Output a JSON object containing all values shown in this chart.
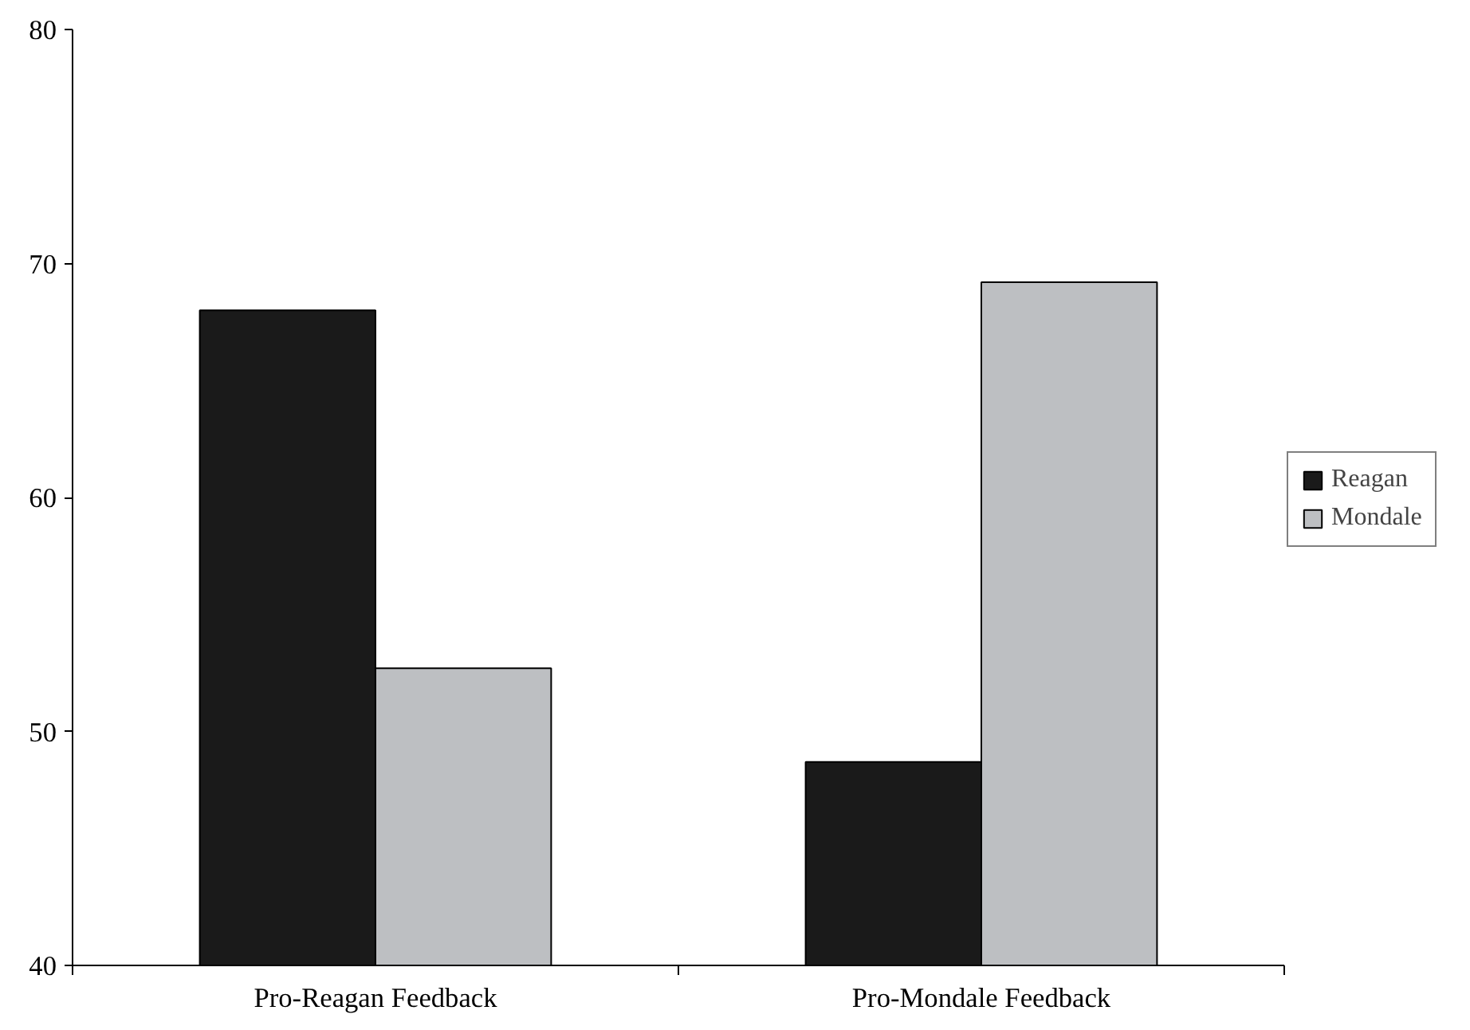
{
  "chart_data": {
    "type": "bar",
    "categories": [
      "Pro-Reagan Feedback",
      "Pro-Mondale Feedback"
    ],
    "series": [
      {
        "name": "Reagan",
        "color": "#1a1a1a",
        "values": [
          68,
          48.7
        ]
      },
      {
        "name": "Mondale",
        "color": "#bdbfc2",
        "values": [
          52.7,
          69.2
        ]
      }
    ],
    "ylim": [
      40,
      80
    ],
    "yticks": [
      40,
      50,
      60,
      70,
      80
    ],
    "grid": false,
    "legend": "right"
  }
}
